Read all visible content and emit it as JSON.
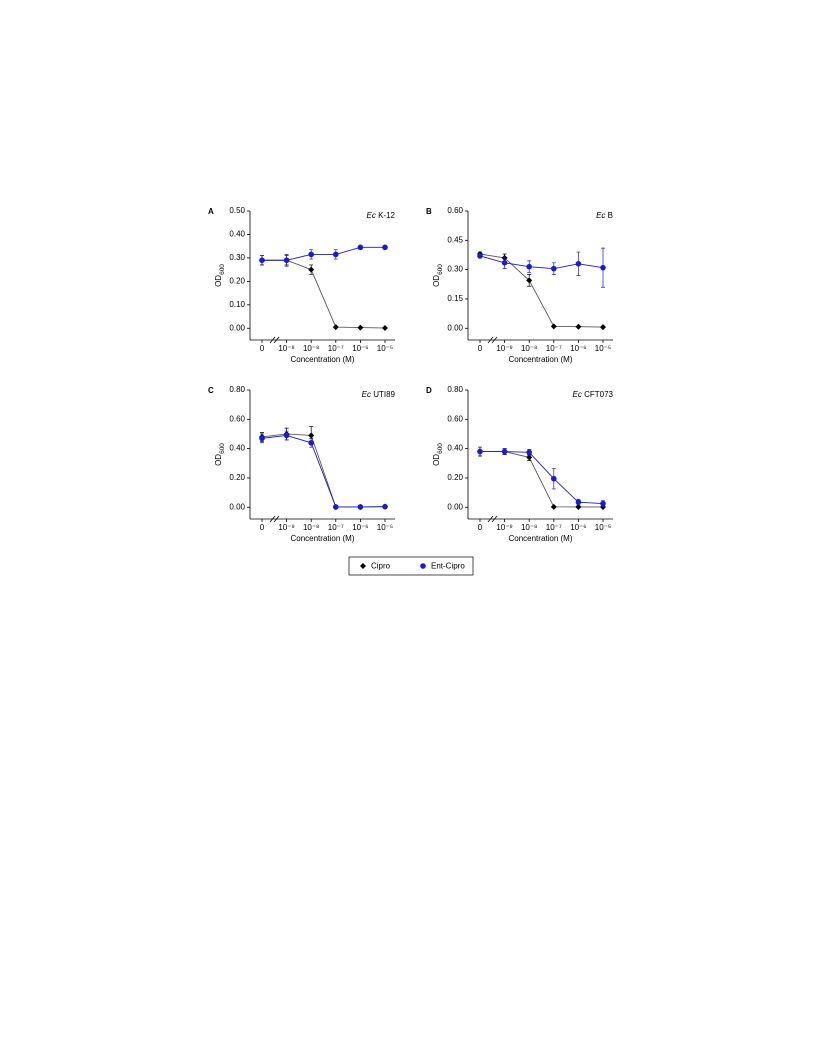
{
  "chart_data": [
    {
      "type": "line",
      "panel": "A",
      "title_prefix": "Ec",
      "title": "K-12",
      "categories": [
        "0",
        "10⁻⁹",
        "10⁻⁸",
        "10⁻⁷",
        "10⁻⁶",
        "10⁻⁵"
      ],
      "xlabel": "Concentration (M)",
      "ylabel": "OD",
      "ylabel_sub": "600",
      "ylim": [
        -0.05,
        0.5
      ],
      "yticks": [
        {
          "value": 0,
          "label": "0.00"
        },
        {
          "value": 0.1,
          "label": "0.10"
        },
        {
          "value": 0.2,
          "label": "0.20"
        },
        {
          "value": 0.3,
          "label": "0.30"
        },
        {
          "value": 0.4,
          "label": "0.40"
        },
        {
          "value": 0.5,
          "label": "0.50"
        }
      ],
      "series": [
        {
          "name": "Cipro",
          "color": "#000000",
          "marker": "diamond",
          "values": [
            0.29,
            0.29,
            0.25,
            0.005,
            0.003,
            0.001
          ],
          "errors": [
            0.02,
            0.02,
            0.02,
            0,
            0,
            0
          ]
        },
        {
          "name": "Ent-Cipro",
          "color": "#1a1ad0",
          "marker": "circle",
          "values": [
            0.29,
            0.29,
            0.315,
            0.315,
            0.345,
            0.345
          ],
          "errors": [
            0.02,
            0.025,
            0.02,
            0.02,
            0.005,
            0.005
          ]
        }
      ]
    },
    {
      "type": "line",
      "panel": "B",
      "title_prefix": "Ec",
      "title": "B",
      "categories": [
        "0",
        "10⁻⁹",
        "10⁻⁸",
        "10⁻⁷",
        "10⁻⁶",
        "10⁻⁵"
      ],
      "xlabel": "Concentration (M)",
      "ylabel": "OD",
      "ylabel_sub": "600",
      "ylim": [
        -0.06,
        0.6
      ],
      "yticks": [
        {
          "value": 0,
          "label": "0.00"
        },
        0.15,
        {
          "value": 0.3,
          "label": "0.30"
        },
        0.45,
        {
          "value": 0.6,
          "label": "0.60"
        }
      ],
      "series": [
        {
          "name": "Cipro",
          "color": "#000000",
          "marker": "diamond",
          "values": [
            0.38,
            0.36,
            0.245,
            0.01,
            0.008,
            0.006
          ],
          "errors": [
            0.01,
            0.02,
            0.03,
            0,
            0,
            0
          ]
        },
        {
          "name": "Ent-Cipro",
          "color": "#1a1ad0",
          "marker": "circle",
          "values": [
            0.37,
            0.335,
            0.315,
            0.305,
            0.33,
            0.31
          ],
          "errors": [
            0.01,
            0.03,
            0.03,
            0.03,
            0.06,
            0.1
          ]
        }
      ]
    },
    {
      "type": "line",
      "panel": "C",
      "title_prefix": "Ec",
      "title": "UTI89",
      "categories": [
        "0",
        "10⁻⁹",
        "10⁻⁸",
        "10⁻⁷",
        "10⁻⁶",
        "10⁻⁵"
      ],
      "xlabel": "Concentration (M)",
      "ylabel": "OD",
      "ylabel_sub": "600",
      "ylim": [
        -0.08,
        0.8
      ],
      "yticks": [
        {
          "value": 0,
          "label": "0.00"
        },
        {
          "value": 0.2,
          "label": "0.20"
        },
        {
          "value": 0.4,
          "label": "0.40"
        },
        {
          "value": 0.6,
          "label": "0.60"
        },
        {
          "value": 0.8,
          "label": "0.80"
        }
      ],
      "series": [
        {
          "name": "Cipro",
          "color": "#000000",
          "marker": "diamond",
          "values": [
            0.48,
            0.5,
            0.49,
            0.002,
            0.002,
            0.004
          ],
          "errors": [
            0.03,
            0.04,
            0.06,
            0,
            0,
            0
          ]
        },
        {
          "name": "Ent-Cipro",
          "color": "#1a1ad0",
          "marker": "circle",
          "values": [
            0.47,
            0.49,
            0.44,
            0.002,
            0.002,
            0.004
          ],
          "errors": [
            0.03,
            0.03,
            0.03,
            0,
            0,
            0
          ]
        }
      ]
    },
    {
      "type": "line",
      "panel": "D",
      "title_prefix": "Ec",
      "title": "CFT073",
      "categories": [
        "0",
        "10⁻⁹",
        "10⁻⁸",
        "10⁻⁷",
        "10⁻⁶",
        "10⁻⁵"
      ],
      "xlabel": "Concentration (M)",
      "ylabel": "OD",
      "ylabel_sub": "600",
      "ylim": [
        -0.08,
        0.8
      ],
      "yticks": [
        {
          "value": 0,
          "label": "0.00"
        },
        {
          "value": 0.2,
          "label": "0.20"
        },
        {
          "value": 0.4,
          "label": "0.40"
        },
        {
          "value": 0.6,
          "label": "0.60"
        },
        {
          "value": 0.8,
          "label": "0.80"
        }
      ],
      "series": [
        {
          "name": "Cipro",
          "color": "#000000",
          "marker": "diamond",
          "values": [
            0.38,
            0.38,
            0.34,
            0.003,
            0.002,
            0.002
          ],
          "errors": [
            0.03,
            0.02,
            0.02,
            0,
            0,
            0
          ]
        },
        {
          "name": "Ent-Cipro",
          "color": "#1a1ad0",
          "marker": "circle",
          "values": [
            0.38,
            0.38,
            0.375,
            0.195,
            0.035,
            0.025
          ],
          "errors": [
            0.03,
            0.02,
            0.02,
            0.07,
            0.02,
            0.02
          ]
        }
      ]
    }
  ]
}
